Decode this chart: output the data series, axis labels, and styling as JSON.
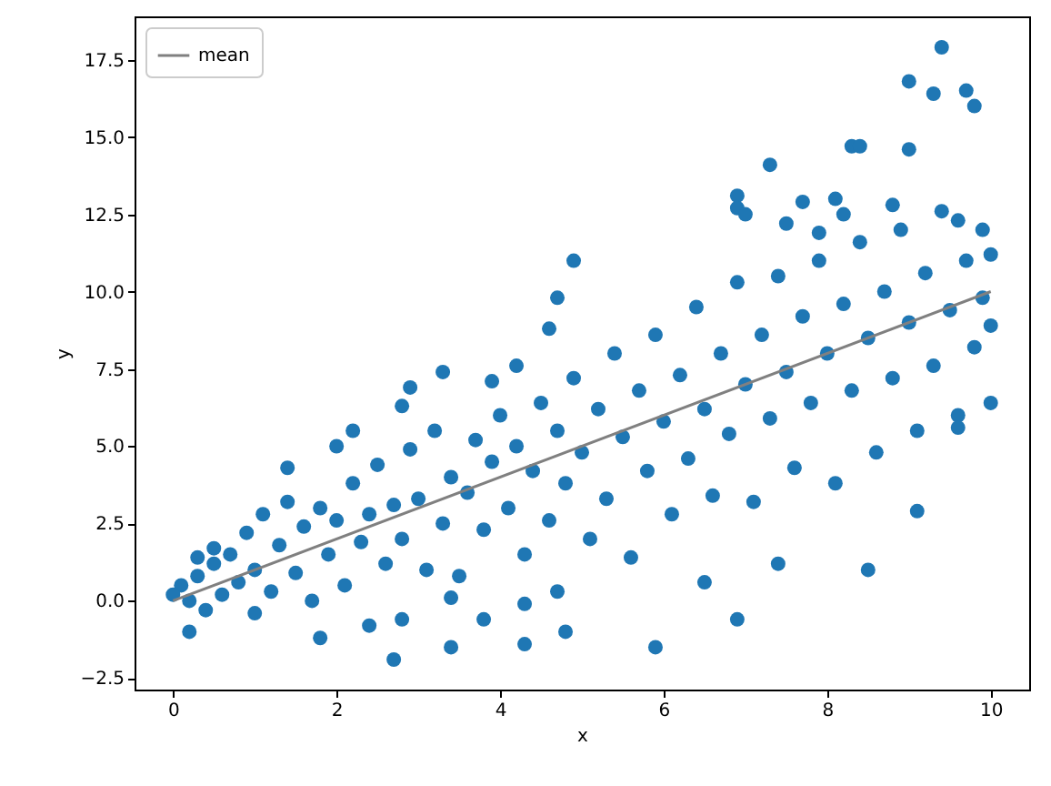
{
  "chart_data": {
    "type": "scatter",
    "xlabel": "x",
    "ylabel": "y",
    "xlim": [
      -0.47,
      10.47
    ],
    "ylim": [
      -2.87,
      18.9
    ],
    "xticks": [
      0,
      2,
      4,
      6,
      8,
      10
    ],
    "yticks": [
      {
        "value": -2.5,
        "label": "−2.5"
      },
      {
        "value": 0,
        "label": "0.0"
      },
      {
        "value": 2.5,
        "label": "2.5"
      },
      {
        "value": 5,
        "label": "5.0"
      },
      {
        "value": 7.5,
        "label": "7.5"
      },
      {
        "value": 10,
        "label": "10.0"
      },
      {
        "value": 12.5,
        "label": "12.5"
      },
      {
        "value": 15,
        "label": "15.0"
      },
      {
        "value": 17.5,
        "label": "17.5"
      }
    ],
    "grid": false,
    "legend": "top left",
    "series": [
      {
        "marker": "circle",
        "color": "#1f77b4",
        "x": [
          0.1,
          0.2,
          0.3,
          0.4,
          0.5,
          0.6,
          0.7,
          0.8,
          0.9,
          1.0,
          1.0,
          1.1,
          1.2,
          1.3,
          1.4,
          1.5,
          1.6,
          1.7,
          1.8,
          1.9,
          2.0,
          2.1,
          2.2,
          2.3,
          2.4,
          2.5,
          2.6,
          2.7,
          2.8,
          2.9,
          3.0,
          3.1,
          3.2,
          3.3,
          3.4,
          3.5,
          3.6,
          3.7,
          3.8,
          3.9,
          4.0,
          4.1,
          4.2,
          4.3,
          4.4,
          4.5,
          4.6,
          4.7,
          4.8,
          4.9,
          5.0,
          5.1,
          5.2,
          5.3,
          5.4,
          5.5,
          5.6,
          5.7,
          5.8,
          5.9,
          6.0,
          6.1,
          6.2,
          6.3,
          6.4,
          6.5,
          6.6,
          6.7,
          6.8,
          6.9,
          7.0,
          7.1,
          7.2,
          7.3,
          7.4,
          7.5,
          7.6,
          7.7,
          7.8,
          7.9,
          8.0,
          8.1,
          8.2,
          8.3,
          8.4,
          8.5,
          8.6,
          8.7,
          8.8,
          8.9,
          9.0,
          9.1,
          9.2,
          9.3,
          9.4,
          9.5,
          9.6,
          9.7,
          9.8,
          9.9,
          10.0,
          9.4,
          9.0,
          9.7,
          9.3,
          9.8,
          8.3,
          8.4,
          9.0,
          7.3,
          6.9,
          6.9,
          7.0,
          8.1,
          8.2,
          7.7,
          7.5,
          7.9,
          8.8,
          9.6,
          9.9,
          10.0,
          4.9,
          4.7,
          4.6,
          3.3,
          2.9,
          2.8,
          2.2,
          2.0,
          1.4,
          0.5,
          0.3,
          0.0,
          0.2,
          2.7,
          3.4,
          4.3,
          1.8,
          2.4,
          2.8,
          3.8,
          4.3,
          4.7,
          3.4,
          4.8,
          5.9,
          6.9,
          8.5,
          7.4,
          6.5,
          9.1,
          10.0,
          9.6,
          3.9,
          4.2
        ],
        "values": [
          0.5,
          0.0,
          0.8,
          -0.3,
          1.2,
          0.2,
          1.5,
          0.6,
          2.2,
          -0.4,
          1.0,
          2.8,
          0.3,
          1.8,
          3.2,
          0.9,
          2.4,
          0.0,
          3.0,
          1.5,
          2.6,
          0.5,
          3.8,
          1.9,
          2.8,
          4.4,
          1.2,
          3.1,
          2.0,
          4.9,
          3.3,
          1.0,
          5.5,
          2.5,
          4.0,
          0.8,
          3.5,
          5.2,
          2.3,
          4.5,
          6.0,
          3.0,
          5.0,
          1.5,
          4.2,
          6.4,
          2.6,
          5.5,
          3.8,
          7.2,
          4.8,
          2.0,
          6.2,
          3.3,
          8.0,
          5.3,
          1.4,
          6.8,
          4.2,
          8.6,
          5.8,
          2.8,
          7.3,
          4.6,
          9.5,
          6.2,
          3.4,
          8.0,
          5.4,
          10.3,
          7.0,
          3.2,
          8.6,
          5.9,
          10.5,
          7.4,
          4.3,
          9.2,
          6.4,
          11.0,
          8.0,
          3.8,
          9.6,
          6.8,
          11.6,
          8.5,
          4.8,
          10.0,
          7.2,
          12.0,
          9.0,
          5.5,
          10.6,
          7.6,
          12.6,
          9.4,
          6.0,
          11.0,
          8.2,
          9.8,
          8.9,
          17.9,
          16.8,
          16.5,
          16.4,
          16.0,
          14.7,
          14.7,
          14.6,
          14.1,
          13.1,
          12.7,
          12.5,
          13.0,
          12.5,
          12.9,
          12.2,
          11.9,
          12.8,
          12.3,
          12.0,
          11.2,
          11.0,
          9.8,
          8.8,
          7.4,
          6.9,
          6.3,
          5.5,
          5.0,
          4.3,
          1.7,
          1.4,
          0.2,
          -1.0,
          -1.9,
          -1.5,
          -1.4,
          -1.2,
          -0.8,
          -0.6,
          -0.6,
          -0.1,
          0.3,
          0.1,
          -1.0,
          -1.5,
          -0.6,
          1.0,
          1.2,
          0.6,
          2.9,
          6.4,
          5.6,
          7.1,
          7.6
        ]
      },
      {
        "type": "line",
        "name": "mean",
        "color": "#808080",
        "x": [
          0,
          10
        ],
        "values": [
          0,
          10
        ]
      }
    ]
  }
}
